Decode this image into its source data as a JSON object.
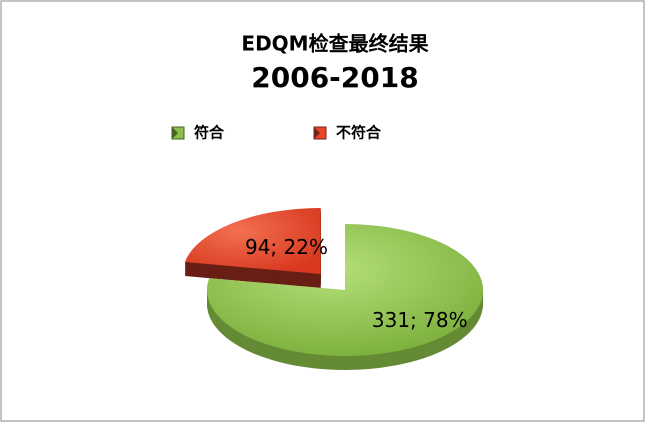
{
  "chart_data": {
    "type": "pie",
    "title": "EDQM检查最终结果",
    "subtitle": "2006-2018",
    "categories": [
      "符合",
      "不符合"
    ],
    "values": [
      331,
      94
    ],
    "value_labels": [
      "331; 78%",
      "94; 22%"
    ],
    "colors": [
      "#8cc04a",
      "#e8452c"
    ],
    "legend": "top"
  }
}
